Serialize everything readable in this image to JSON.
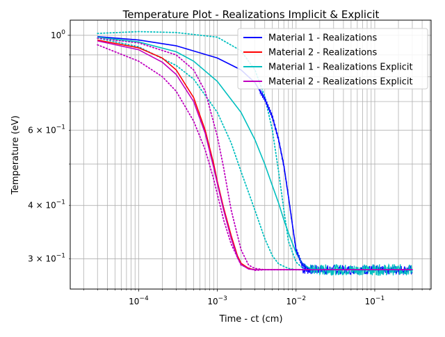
{
  "chart_data": {
    "type": "line",
    "title": "Temperature Plot - Realizations Implicit & Explicit",
    "xlabel": "Time - ct (cm)",
    "ylabel": "Temperature (eV)",
    "xscale": "log",
    "yscale": "log",
    "xlim": [
      1.35e-05,
      0.52
    ],
    "ylim": [
      0.255,
      1.085
    ],
    "grid": "major and minor",
    "legend_position": "top-right",
    "x_tick_labels": [
      "10^-4",
      "10^-3",
      "10^-2",
      "10^-1"
    ],
    "y_tick_labels": [
      "3 × 10^-1",
      "4 × 10^-1",
      "6 × 10^-1",
      "10^0"
    ],
    "x_ticks": [
      0.0001,
      0.001,
      0.01,
      0.1
    ],
    "y_ticks": [
      0.3,
      0.4,
      0.6,
      1.0
    ],
    "series": [
      {
        "name": "Material 1 - Realizations",
        "color": "#0000ff",
        "style": "solid with error bars",
        "x": [
          3e-05,
          0.0001,
          0.0003,
          0.001,
          0.002,
          0.003,
          0.004,
          0.005,
          0.006,
          0.007,
          0.008,
          0.009,
          0.01,
          0.012,
          0.015,
          0.02,
          0.05,
          0.1,
          0.3
        ],
        "y": [
          0.993,
          0.975,
          0.945,
          0.885,
          0.83,
          0.775,
          0.71,
          0.645,
          0.57,
          0.495,
          0.42,
          0.36,
          0.315,
          0.29,
          0.284,
          0.283,
          0.283,
          0.283,
          0.283
        ]
      },
      {
        "name": "Material 2 - Realizations",
        "color": "#ff0000",
        "style": "solid",
        "x": [
          3e-05,
          0.0001,
          0.0002,
          0.0003,
          0.0005,
          0.0007,
          0.0009,
          0.001,
          0.0012,
          0.0015,
          0.0018,
          0.002,
          0.0025,
          0.003,
          0.004,
          0.01,
          0.3
        ],
        "y": [
          0.975,
          0.935,
          0.885,
          0.83,
          0.715,
          0.6,
          0.5,
          0.455,
          0.395,
          0.34,
          0.305,
          0.293,
          0.285,
          0.283,
          0.283,
          0.283,
          0.283
        ]
      },
      {
        "name": "Material 1 - Realizations Explicit",
        "color": "#00bfbf",
        "style": "solid with dotted bounds",
        "x": [
          3e-05,
          0.0001,
          0.0003,
          0.0005,
          0.001,
          0.002,
          0.003,
          0.004,
          0.005,
          0.006,
          0.007,
          0.008,
          0.01,
          0.012,
          0.015,
          0.02,
          0.05,
          0.1,
          0.3
        ],
        "y": [
          0.99,
          0.965,
          0.915,
          0.87,
          0.78,
          0.66,
          0.57,
          0.5,
          0.445,
          0.405,
          0.37,
          0.345,
          0.31,
          0.293,
          0.285,
          0.283,
          0.283,
          0.283,
          0.283
        ]
      },
      {
        "name": "Material 2 - Realizations Explicit",
        "color": "#bf00bf",
        "style": "solid with dotted bounds",
        "x": [
          3e-05,
          0.0001,
          0.0002,
          0.0003,
          0.0005,
          0.0007,
          0.0009,
          0.001,
          0.0012,
          0.0015,
          0.0018,
          0.002,
          0.0025,
          0.003,
          0.004,
          0.01,
          0.3
        ],
        "y": [
          0.97,
          0.925,
          0.865,
          0.81,
          0.7,
          0.59,
          0.49,
          0.45,
          0.39,
          0.335,
          0.302,
          0.291,
          0.284,
          0.283,
          0.283,
          0.283,
          0.283
        ]
      }
    ],
    "bounds": [
      {
        "color": "#00bfbf",
        "upper_x": [
          3e-05,
          0.0001,
          0.0003,
          0.001,
          0.002,
          0.003,
          0.004,
          0.005,
          0.006,
          0.007,
          0.008,
          0.01,
          0.012,
          0.015,
          0.02,
          0.3
        ],
        "upper_y": [
          1.01,
          1.02,
          1.015,
          0.99,
          0.92,
          0.83,
          0.72,
          0.6,
          0.48,
          0.39,
          0.33,
          0.295,
          0.286,
          0.283,
          0.283,
          0.283
        ],
        "lower_x": [
          3e-05,
          0.0001,
          0.0003,
          0.0005,
          0.001,
          0.0015,
          0.002,
          0.003,
          0.004,
          0.005,
          0.006,
          0.008,
          0.01,
          0.3
        ],
        "lower_y": [
          0.985,
          0.94,
          0.85,
          0.79,
          0.66,
          0.56,
          0.48,
          0.39,
          0.335,
          0.305,
          0.292,
          0.285,
          0.283,
          0.283
        ]
      },
      {
        "color": "#bf00bf",
        "upper_x": [
          3e-05,
          0.0001,
          0.0003,
          0.0005,
          0.0007,
          0.001,
          0.0012,
          0.0015,
          0.002,
          0.0025,
          0.003,
          0.004,
          0.01,
          0.3
        ],
        "upper_y": [
          0.985,
          0.96,
          0.9,
          0.83,
          0.74,
          0.58,
          0.49,
          0.39,
          0.315,
          0.29,
          0.285,
          0.283,
          0.283,
          0.283
        ],
        "lower_x": [
          3e-05,
          0.0001,
          0.0002,
          0.0003,
          0.0005,
          0.0007,
          0.0009,
          0.001,
          0.0012,
          0.0015,
          0.002,
          0.003,
          0.004,
          0.01,
          0.3
        ],
        "lower_y": [
          0.95,
          0.87,
          0.8,
          0.74,
          0.63,
          0.54,
          0.46,
          0.425,
          0.37,
          0.325,
          0.29,
          0.282,
          0.283,
          0.283,
          0.283
        ]
      }
    ]
  }
}
